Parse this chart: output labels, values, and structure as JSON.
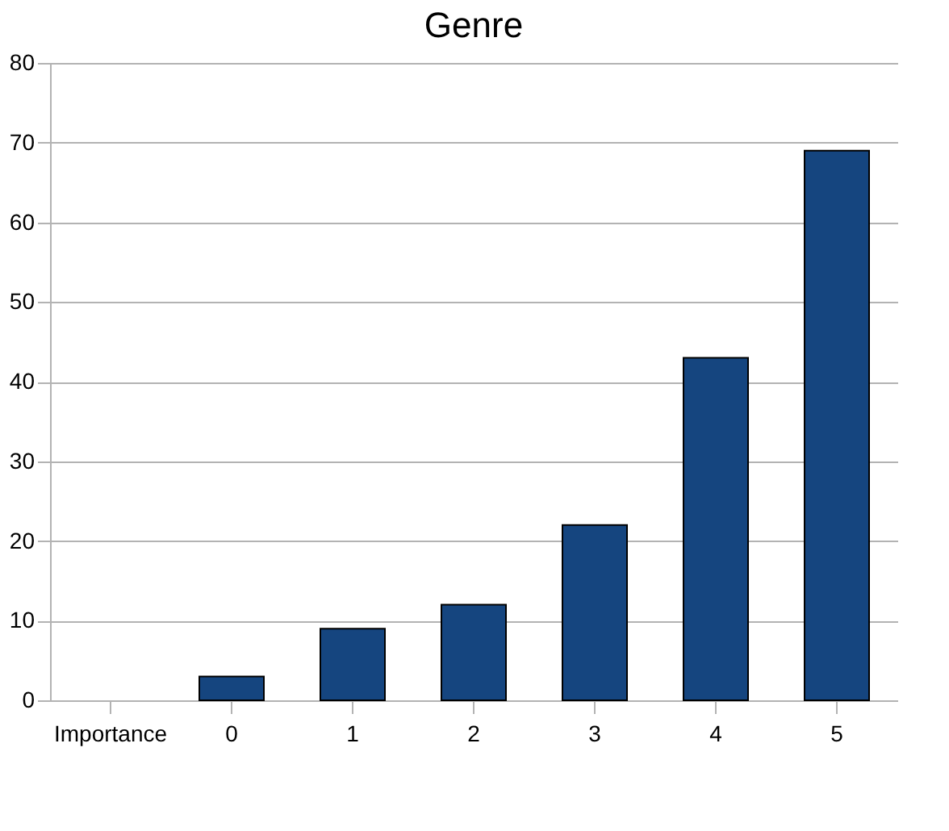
{
  "chart_data": {
    "type": "bar",
    "title": "Genre",
    "categories": [
      "Importance",
      "0",
      "1",
      "2",
      "3",
      "4",
      "5"
    ],
    "values": [
      null,
      3,
      9,
      12,
      22,
      43,
      69
    ],
    "color": "#15457f",
    "ylim": [
      0,
      80
    ],
    "yticks": [
      0,
      10,
      20,
      30,
      40,
      50,
      60,
      70,
      80
    ],
    "grid": "y"
  }
}
